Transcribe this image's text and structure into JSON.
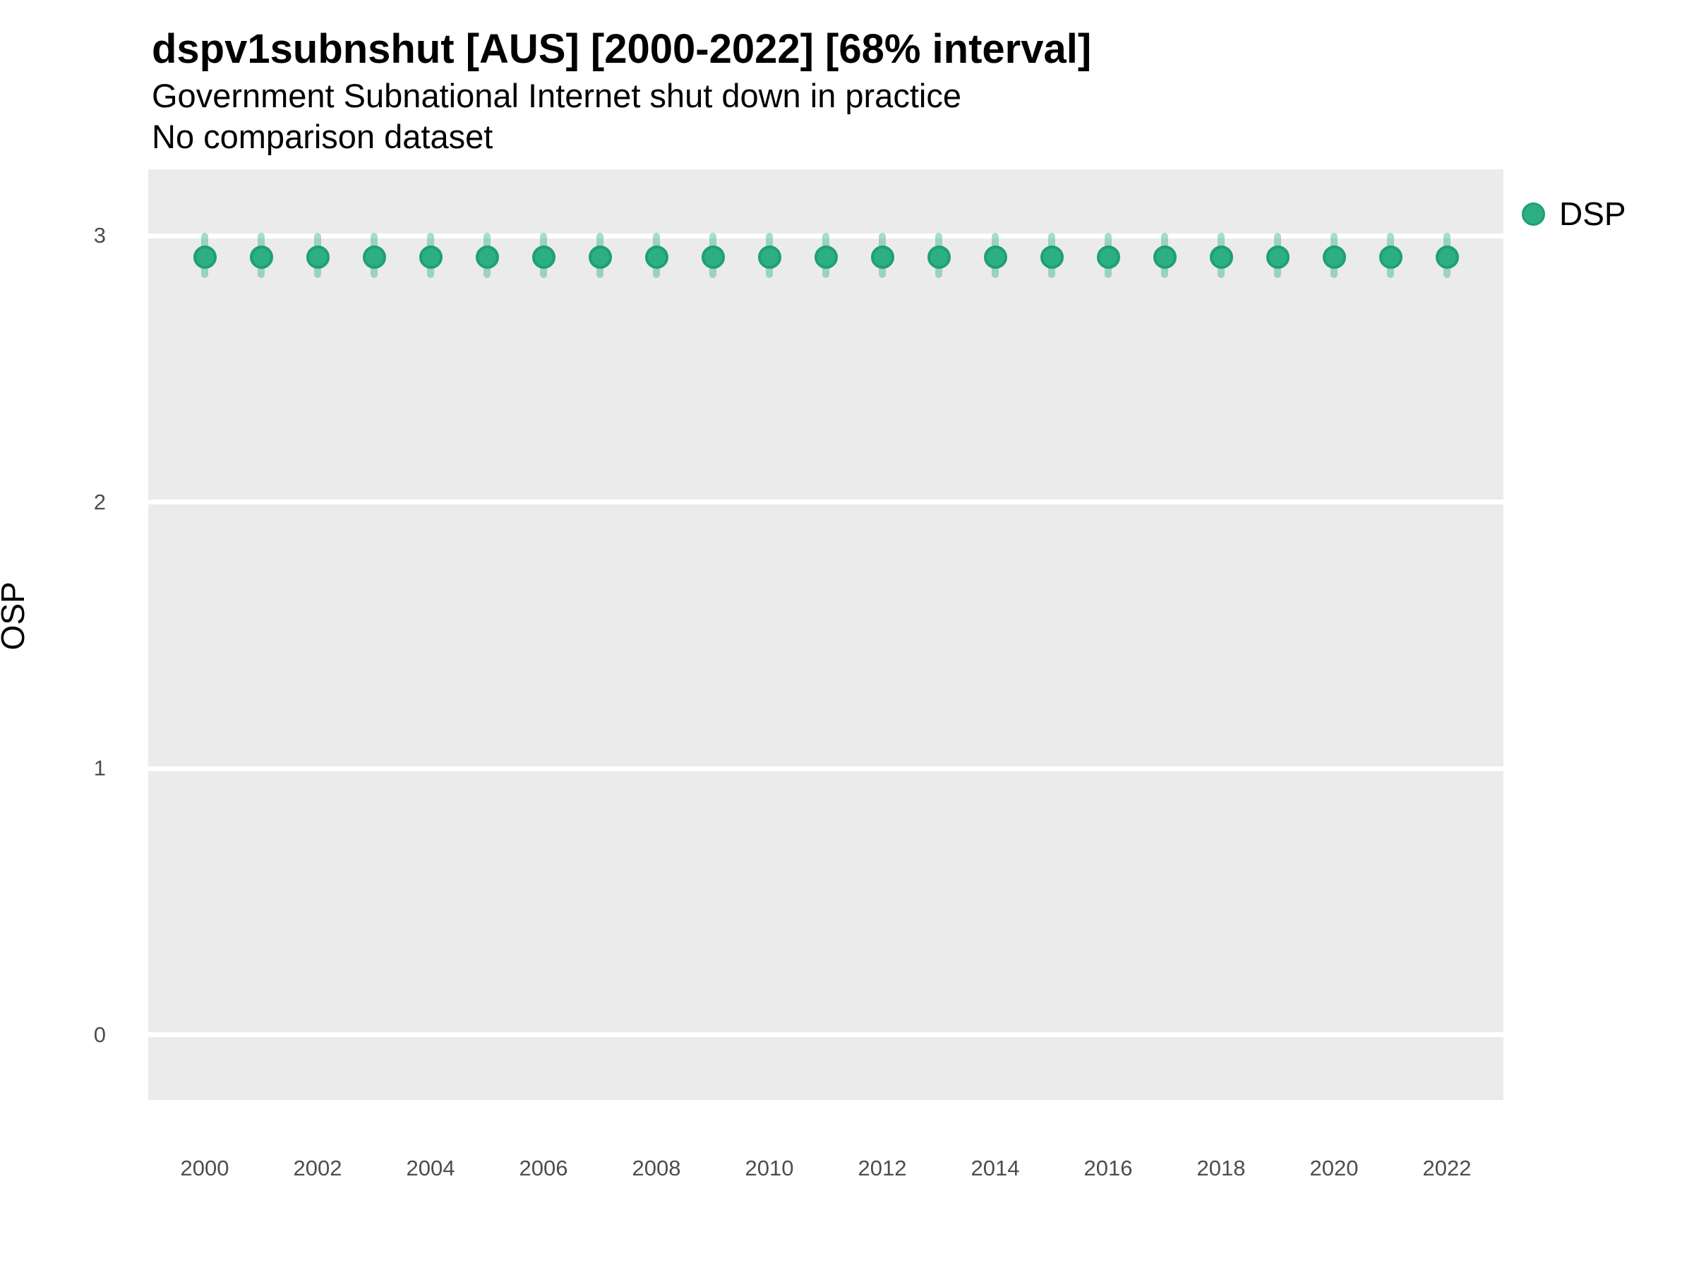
{
  "chart_data": {
    "type": "scatter",
    "mark": "pointrange",
    "title": "dspv1subnshut [AUS] [2000-2022] [68% interval]",
    "subtitle": "Government Subnational Internet shut down in practice",
    "comparison_note": "No comparison dataset",
    "xlabel": "",
    "ylabel": "OSP",
    "ylim": [
      -0.25,
      3.25
    ],
    "y_ticks": [
      0,
      1,
      2,
      3
    ],
    "x_ticks": [
      2000,
      2002,
      2004,
      2006,
      2008,
      2010,
      2012,
      2014,
      2016,
      2018,
      2020,
      2022
    ],
    "grid": "horizontal-major-only",
    "legend": {
      "position": "right",
      "entries": [
        {
          "label": "DSP",
          "color": "#2cb083"
        }
      ]
    },
    "interval_level": "68%",
    "series": [
      {
        "name": "DSP",
        "x": [
          2000,
          2001,
          2002,
          2003,
          2004,
          2005,
          2006,
          2007,
          2008,
          2009,
          2010,
          2011,
          2012,
          2013,
          2014,
          2015,
          2016,
          2017,
          2018,
          2019,
          2020,
          2021,
          2022
        ],
        "estimate": [
          2.92,
          2.92,
          2.92,
          2.92,
          2.92,
          2.92,
          2.92,
          2.92,
          2.92,
          2.92,
          2.92,
          2.92,
          2.92,
          2.92,
          2.92,
          2.92,
          2.92,
          2.92,
          2.92,
          2.92,
          2.92,
          2.92,
          2.92
        ],
        "lower": [
          2.84,
          2.84,
          2.84,
          2.84,
          2.84,
          2.84,
          2.84,
          2.84,
          2.84,
          2.84,
          2.84,
          2.84,
          2.84,
          2.84,
          2.84,
          2.84,
          2.84,
          2.84,
          2.84,
          2.84,
          2.84,
          2.84,
          2.84
        ],
        "upper": [
          3.01,
          3.01,
          3.01,
          3.01,
          3.01,
          3.01,
          3.01,
          3.01,
          3.01,
          3.01,
          3.01,
          3.01,
          3.01,
          3.01,
          3.01,
          3.01,
          3.01,
          3.01,
          3.01,
          3.01,
          3.01,
          3.01,
          3.01
        ]
      }
    ],
    "style": {
      "panel_bg": "#ebebeb",
      "gridline_color": "#ffffff",
      "point_fill": "#2cb083",
      "point_stroke": "#1fa072",
      "interval_color": "rgba(44, 176, 131, 0.42)"
    }
  }
}
